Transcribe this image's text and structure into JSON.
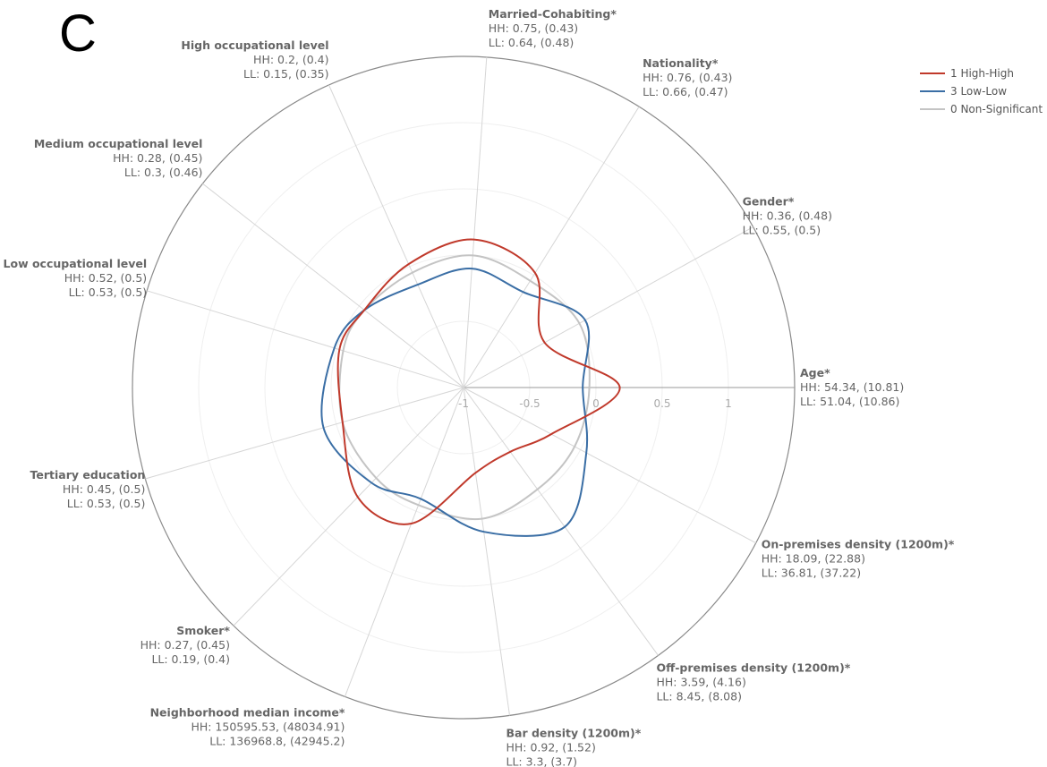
{
  "panel_letter": "C",
  "chart_data": {
    "type": "radar",
    "radial_range": [
      -1,
      1.5
    ],
    "radial_ticks": [
      "-1",
      "-0.5",
      "0",
      "0.5",
      "1"
    ],
    "axes": [
      {
        "name": "Age",
        "star": "*",
        "hh": "HH: 54.34, (10.81)",
        "ll": "LL: 51.04, (10.86)",
        "angle": 0,
        "anchor": "start",
        "dx": 6,
        "dy": -12
      },
      {
        "name": "Gender",
        "star": "*",
        "hh": "HH: 0.36, (0.48)",
        "ll": "LL: 0.55, (0.5)",
        "angle": 29,
        "anchor": "start",
        "dx": -12,
        "dy": -24
      },
      {
        "name": "Nationality",
        "star": "*",
        "hh": "HH: 0.76, (0.43)",
        "ll": "LL: 0.66, (0.47)",
        "angle": 58,
        "anchor": "start",
        "dx": 4,
        "dy": -44
      },
      {
        "name": "Married-Cohabiting",
        "star": "*",
        "hh": "HH: 0.75, (0.43)",
        "ll": "LL: 0.64, (0.48)",
        "angle": 86,
        "anchor": "start",
        "dx": 2,
        "dy": -44
      },
      {
        "name": "High occupational level",
        "star": "",
        "hh": "HH: 0.2, (0.4)",
        "ll": "LL: 0.15, (0.35)",
        "angle": 114,
        "anchor": "end",
        "dx": 0,
        "dy": -40
      },
      {
        "name": "Medium occupational level",
        "star": "",
        "hh": "HH: 0.28, (0.45)",
        "ll": "LL: 0.3, (0.46)",
        "angle": 142,
        "anchor": "end",
        "dx": 0,
        "dy": -40
      },
      {
        "name": "Low occupational level",
        "star": "",
        "hh": "HH: 0.52, (0.5)",
        "ll": "LL: 0.53, (0.5)",
        "angle": 163,
        "anchor": "end",
        "dx": 0,
        "dy": -26
      },
      {
        "name": "Tertiary education",
        "star": "",
        "hh": "HH: 0.45, (0.5)",
        "ll": "LL: 0.53, (0.5)",
        "angle": 196,
        "anchor": "end",
        "dx": 0,
        "dy": 0
      },
      {
        "name": "Smoker",
        "star": "*",
        "hh": "HH: 0.27, (0.45)",
        "ll": "LL: 0.19, (0.4)",
        "angle": 226,
        "anchor": "end",
        "dx": -4,
        "dy": 10
      },
      {
        "name": "Neighborhood median income",
        "star": "*",
        "hh": "HH: 150595.53, (48034.91)",
        "ll": "LL: 136968.8, (42945.2)",
        "angle": 249,
        "anchor": "end",
        "dx": 0,
        "dy": 22
      },
      {
        "name": "Bar density (1200m)",
        "star": "*",
        "hh": "HH: 0.92, (1.52)",
        "ll": "LL: 3.3, (3.7)",
        "angle": 278,
        "anchor": "start",
        "dx": -4,
        "dy": 24
      },
      {
        "name": "Off-premises density (1200m)",
        "star": "*",
        "hh": "HH: 3.59, (4.16)",
        "ll": "LL: 8.45, (8.08)",
        "angle": 306,
        "anchor": "start",
        "dx": -2,
        "dy": 18
      },
      {
        "name": "On-premises density (1200m)",
        "star": "*",
        "hh": "HH: 18.09, (22.88)",
        "ll": "LL: 36.81, (37.22)",
        "angle": 332,
        "anchor": "start",
        "dx": 6,
        "dy": 6
      }
    ],
    "series": [
      {
        "name": "1 High-High",
        "color": "#c0392b",
        "values": [
          0.18,
          -0.3,
          0.02,
          0.12,
          0.02,
          -0.05,
          -0.02,
          -0.05,
          0.15,
          0.1,
          -0.35,
          -0.4,
          -0.25
        ]
      },
      {
        "name": "3 Low-Low",
        "color": "#3a6ea5",
        "values": [
          -0.1,
          0.05,
          -0.15,
          -0.1,
          -0.15,
          -0.05,
          0.02,
          0.1,
          0.0,
          -0.1,
          0.1,
          0.3,
          0.05
        ]
      },
      {
        "name": "0 Non-Significant",
        "color": "#c4c4c4",
        "values": [
          -0.05,
          0.0,
          -0.05,
          0.0,
          -0.05,
          -0.05,
          -0.05,
          -0.05,
          -0.05,
          -0.05,
          0.0,
          -0.05,
          -0.05
        ]
      }
    ]
  }
}
